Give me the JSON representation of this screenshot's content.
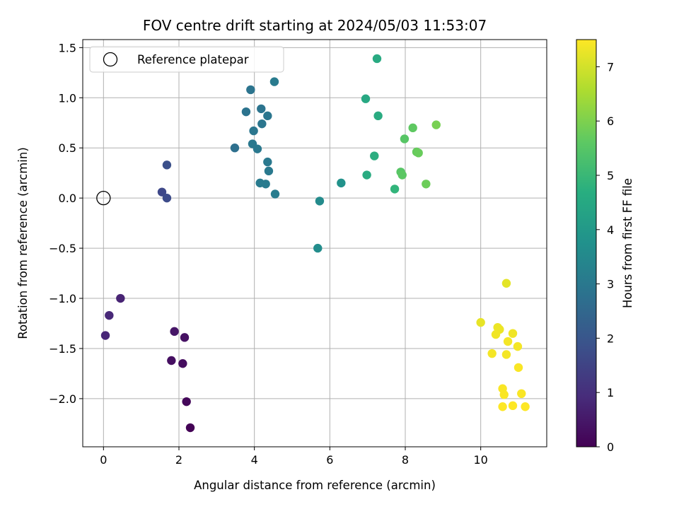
{
  "chart_data": {
    "type": "scatter",
    "title": "FOV centre drift starting at 2024/05/03 11:53:07",
    "xlabel": "Angular distance from reference (arcmin)",
    "ylabel": "Rotation from reference (arcmin)",
    "xlim": [
      -0.55,
      11.75
    ],
    "ylim": [
      -2.48,
      1.58
    ],
    "xticks": [
      0,
      2,
      4,
      6,
      8,
      10
    ],
    "xtick_labels": [
      "0",
      "2",
      "4",
      "6",
      "8",
      "10"
    ],
    "yticks": [
      1.5,
      1.0,
      0.5,
      0.0,
      -0.5,
      -1.0,
      -1.5,
      -2.0
    ],
    "ytick_labels": [
      "1.5",
      "1.0",
      "0.5",
      "0.0",
      "−0.5",
      "−1.0",
      "−1.5",
      "−2.0"
    ],
    "grid": true,
    "legend": {
      "position": "top-left",
      "entries": [
        {
          "label": "Reference platepar",
          "marker": "open-circle",
          "point": [
            0,
            0
          ]
        }
      ]
    },
    "colorbar": {
      "label": "Hours from first FF file",
      "colormap": "viridis",
      "range": [
        0,
        7.5
      ],
      "ticks": [
        0,
        1,
        2,
        3,
        4,
        5,
        6,
        7
      ],
      "tick_labels": [
        "0",
        "1",
        "2",
        "3",
        "4",
        "5",
        "6",
        "7"
      ]
    },
    "points": [
      {
        "x": 2.3,
        "y": -2.29,
        "hours": 0.05
      },
      {
        "x": 2.2,
        "y": -2.03,
        "hours": 0.15
      },
      {
        "x": 2.1,
        "y": -1.65,
        "hours": 0.25
      },
      {
        "x": 1.8,
        "y": -1.62,
        "hours": 0.3
      },
      {
        "x": 2.15,
        "y": -1.39,
        "hours": 0.35
      },
      {
        "x": 1.88,
        "y": -1.33,
        "hours": 0.45
      },
      {
        "x": 0.45,
        "y": -1.0,
        "hours": 0.75
      },
      {
        "x": 0.15,
        "y": -1.17,
        "hours": 0.85
      },
      {
        "x": 0.05,
        "y": -1.37,
        "hours": 0.8
      },
      {
        "x": 1.55,
        "y": 0.06,
        "hours": 1.65
      },
      {
        "x": 1.68,
        "y": 0.0,
        "hours": 1.75
      },
      {
        "x": 1.68,
        "y": 0.33,
        "hours": 1.85
      },
      {
        "x": 3.48,
        "y": 0.5,
        "hours": 2.75
      },
      {
        "x": 3.9,
        "y": 1.08,
        "hours": 2.9
      },
      {
        "x": 3.78,
        "y": 0.86,
        "hours": 2.85
      },
      {
        "x": 4.18,
        "y": 0.89,
        "hours": 2.9
      },
      {
        "x": 4.35,
        "y": 0.82,
        "hours": 2.95
      },
      {
        "x": 4.2,
        "y": 0.74,
        "hours": 2.95
      },
      {
        "x": 3.98,
        "y": 0.67,
        "hours": 2.95
      },
      {
        "x": 3.95,
        "y": 0.54,
        "hours": 3.0
      },
      {
        "x": 4.08,
        "y": 0.49,
        "hours": 3.0
      },
      {
        "x": 4.35,
        "y": 0.36,
        "hours": 3.05
      },
      {
        "x": 4.38,
        "y": 0.27,
        "hours": 3.05
      },
      {
        "x": 4.15,
        "y": 0.15,
        "hours": 3.1
      },
      {
        "x": 4.3,
        "y": 0.14,
        "hours": 3.1
      },
      {
        "x": 4.55,
        "y": 0.04,
        "hours": 3.15
      },
      {
        "x": 4.53,
        "y": 1.16,
        "hours": 3.1
      },
      {
        "x": 5.73,
        "y": -0.03,
        "hours": 3.6
      },
      {
        "x": 5.68,
        "y": -0.5,
        "hours": 3.65
      },
      {
        "x": 6.3,
        "y": 0.15,
        "hours": 3.8
      },
      {
        "x": 6.95,
        "y": 0.99,
        "hours": 4.5
      },
      {
        "x": 7.25,
        "y": 1.39,
        "hours": 4.55
      },
      {
        "x": 7.28,
        "y": 0.82,
        "hours": 4.6
      },
      {
        "x": 7.18,
        "y": 0.42,
        "hours": 4.65
      },
      {
        "x": 6.98,
        "y": 0.23,
        "hours": 4.6
      },
      {
        "x": 7.72,
        "y": 0.09,
        "hours": 4.9
      },
      {
        "x": 7.98,
        "y": 0.59,
        "hours": 5.5
      },
      {
        "x": 8.2,
        "y": 0.7,
        "hours": 5.6
      },
      {
        "x": 8.3,
        "y": 0.46,
        "hours": 5.7
      },
      {
        "x": 8.35,
        "y": 0.45,
        "hours": 5.75
      },
      {
        "x": 7.88,
        "y": 0.26,
        "hours": 5.5
      },
      {
        "x": 7.92,
        "y": 0.23,
        "hours": 5.55
      },
      {
        "x": 8.55,
        "y": 0.14,
        "hours": 5.8
      },
      {
        "x": 8.82,
        "y": 0.73,
        "hours": 5.95
      },
      {
        "x": 10.68,
        "y": -0.85,
        "hours": 7.2
      },
      {
        "x": 10.0,
        "y": -1.24,
        "hours": 7.25
      },
      {
        "x": 10.45,
        "y": -1.29,
        "hours": 7.3
      },
      {
        "x": 10.5,
        "y": -1.31,
        "hours": 7.3
      },
      {
        "x": 10.4,
        "y": -1.36,
        "hours": 7.35
      },
      {
        "x": 10.85,
        "y": -1.35,
        "hours": 7.35
      },
      {
        "x": 10.72,
        "y": -1.43,
        "hours": 7.4
      },
      {
        "x": 10.98,
        "y": -1.48,
        "hours": 7.4
      },
      {
        "x": 10.3,
        "y": -1.55,
        "hours": 7.4
      },
      {
        "x": 10.68,
        "y": -1.56,
        "hours": 7.4
      },
      {
        "x": 11.0,
        "y": -1.69,
        "hours": 7.45
      },
      {
        "x": 10.58,
        "y": -1.9,
        "hours": 7.45
      },
      {
        "x": 10.62,
        "y": -1.96,
        "hours": 7.45
      },
      {
        "x": 11.08,
        "y": -1.95,
        "hours": 7.45
      },
      {
        "x": 10.58,
        "y": -2.08,
        "hours": 7.5
      },
      {
        "x": 10.85,
        "y": -2.07,
        "hours": 7.5
      },
      {
        "x": 11.18,
        "y": -2.08,
        "hours": 7.5
      }
    ]
  }
}
